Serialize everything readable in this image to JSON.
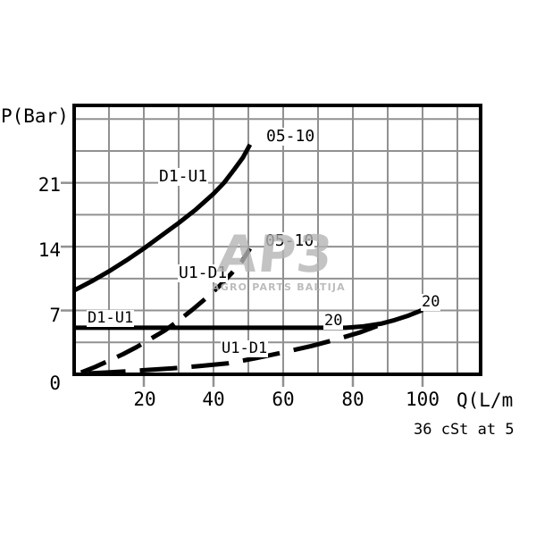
{
  "axes": {
    "y_axis_label": "P(Bar)",
    "x_axis_label": "Q(L/m",
    "footnote": "36 cSt at 5",
    "y_ticks": [
      "21",
      "14",
      "7",
      "0"
    ],
    "x_ticks": [
      "20",
      "40",
      "60",
      "80",
      "100"
    ]
  },
  "curve_labels": {
    "top_solid_path": "D1-U1",
    "top_solid_size": "05-10",
    "mid_dashed_path": "U1-D1",
    "mid_dashed_size": "05-10",
    "low_solid_path": "D1-U1",
    "low_solid_size": "20",
    "low_solid_size_end": "20",
    "bottom_dashed_path": "U1-D1"
  },
  "watermark": {
    "logo": "AP3",
    "subtitle": "AGRO PARTS BALTIJA"
  },
  "colors": {
    "background": "#ffffff",
    "grid": "#919191",
    "axis": "#000000",
    "curve": "#000000",
    "text": "#000000",
    "watermark": "#b5b5b5"
  },
  "chart_data": {
    "type": "line",
    "title": "",
    "xlabel": "Q(L/m",
    "ylabel": "P(Bar)",
    "footnote": "36 cSt at 5",
    "xlim": [
      0,
      116.5
    ],
    "ylim": [
      0,
      29.5
    ],
    "grid": true,
    "x_grid_step": 10,
    "y_grid_step": 3.5,
    "x_tick_values": [
      20,
      40,
      60,
      80,
      100
    ],
    "y_tick_values": [
      0,
      7,
      14,
      21
    ],
    "series": [
      {
        "name": "05-10 D1-U1",
        "size": "05-10",
        "flow_path": "D1-U1",
        "style": "solid",
        "points": [
          [
            0,
            9.2
          ],
          [
            5,
            10.2
          ],
          [
            10,
            11.3
          ],
          [
            15,
            12.5
          ],
          [
            20,
            13.8
          ],
          [
            25,
            15.2
          ],
          [
            30,
            16.6
          ],
          [
            35,
            18.1
          ],
          [
            40,
            19.8
          ],
          [
            43,
            21.0
          ],
          [
            46,
            22.5
          ],
          [
            48.5,
            23.8
          ],
          [
            50.5,
            25.2
          ]
        ]
      },
      {
        "name": "05-10 U1-D1",
        "size": "05-10",
        "flow_path": "U1-D1",
        "style": "dashed",
        "points": [
          [
            2,
            0.2
          ],
          [
            6,
            0.8
          ],
          [
            10,
            1.5
          ],
          [
            14,
            2.2
          ],
          [
            18,
            3.0
          ],
          [
            22,
            3.9
          ],
          [
            26,
            4.8
          ],
          [
            30,
            5.9
          ],
          [
            34,
            7.1
          ],
          [
            38,
            8.4
          ],
          [
            42,
            9.8
          ],
          [
            45,
            11.0
          ],
          [
            48,
            12.3
          ],
          [
            50.5,
            13.8
          ]
        ]
      },
      {
        "name": "20 D1-U1",
        "size": "20",
        "flow_path": "D1-U1",
        "style": "solid",
        "points": [
          [
            0,
            5.1
          ],
          [
            78,
            5.1
          ],
          [
            83,
            5.25
          ],
          [
            88,
            5.55
          ],
          [
            92,
            5.95
          ],
          [
            96,
            6.45
          ],
          [
            100,
            7.05
          ]
        ]
      },
      {
        "name": "20 U1-D1",
        "size": "20",
        "flow_path": "U1-D1",
        "style": "dashed",
        "points": [
          [
            4,
            0.1
          ],
          [
            12,
            0.25
          ],
          [
            20,
            0.45
          ],
          [
            28,
            0.65
          ],
          [
            36,
            0.9
          ],
          [
            44,
            1.2
          ],
          [
            52,
            1.75
          ],
          [
            60,
            2.4
          ],
          [
            68,
            3.1
          ],
          [
            75,
            3.8
          ],
          [
            82,
            4.6
          ],
          [
            87,
            5.3
          ]
        ]
      }
    ]
  }
}
